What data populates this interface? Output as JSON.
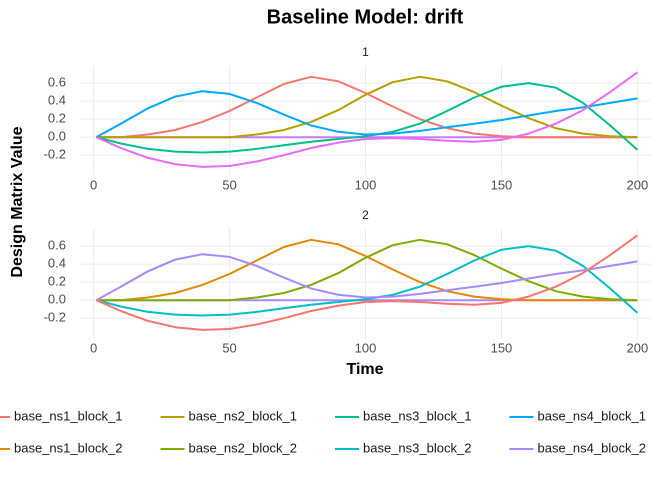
{
  "chart_data": {
    "type": "line",
    "title": "Baseline Model: drift",
    "xlabel": "Time",
    "ylabel": "Design Matrix Value",
    "x": [
      1,
      10,
      20,
      30,
      40,
      50,
      60,
      70,
      80,
      90,
      100,
      110,
      120,
      130,
      140,
      150,
      160,
      170,
      180,
      190,
      200
    ],
    "xlim": [
      -5,
      205
    ],
    "xticks": [
      0,
      50,
      100,
      150,
      200
    ],
    "ylim": [
      -0.42,
      0.79
    ],
    "yticks": [
      -0.2,
      {
        "value": 0,
        "label": "0.0"
      },
      0.2,
      0.4,
      0.6
    ],
    "grid": true,
    "facets": [
      {
        "title": "1",
        "series": [
          {
            "color": "#C77CFF",
            "values": [
              0,
              0,
              0,
              0,
              0,
              0,
              0,
              0,
              0,
              0,
              0,
              0,
              0,
              0,
              0,
              0,
              0,
              0,
              0,
              0,
              0
            ]
          },
          {
            "color": "#F8766D",
            "values": [
              0,
              0,
              0.03,
              0.08,
              0.17,
              0.29,
              0.44,
              0.59,
              0.67,
              0.62,
              0.49,
              0.34,
              0.2,
              0.1,
              0.04,
              0.01,
              0,
              0,
              0,
              0,
              0
            ]
          },
          {
            "color": "#B79F00",
            "values": [
              0,
              0,
              0,
              0,
              0,
              0,
              0.03,
              0.08,
              0.17,
              0.3,
              0.47,
              0.61,
              0.67,
              0.62,
              0.5,
              0.35,
              0.21,
              0.1,
              0.04,
              0.01,
              0
            ]
          },
          {
            "color": "#00C08B",
            "values": [
              0,
              -0.07,
              -0.13,
              -0.16,
              -0.17,
              -0.16,
              -0.13,
              -0.09,
              -0.05,
              -0.02,
              0.01,
              0.06,
              0.15,
              0.29,
              0.44,
              0.56,
              0.6,
              0.55,
              0.38,
              0.13,
              -0.14
            ]
          },
          {
            "color": "#00A9FF",
            "values": [
              0,
              0.15,
              0.32,
              0.45,
              0.51,
              0.48,
              0.38,
              0.25,
              0.13,
              0.06,
              0.03,
              0.04,
              0.07,
              0.11,
              0.15,
              0.19,
              0.24,
              0.29,
              0.33,
              0.38,
              0.43
            ]
          },
          {
            "color": "#E76BF3",
            "values": [
              0,
              -0.12,
              -0.23,
              -0.3,
              -0.33,
              -0.32,
              -0.27,
              -0.2,
              -0.12,
              -0.06,
              -0.02,
              -0.01,
              -0.02,
              -0.04,
              -0.05,
              -0.03,
              0.04,
              0.15,
              0.3,
              0.5,
              0.72
            ]
          }
        ]
      },
      {
        "title": "2",
        "series": [
          {
            "color": "#A58AFF",
            "values": [
              0,
              0,
              0,
              0,
              0,
              0,
              0,
              0,
              0,
              0,
              0,
              0,
              0,
              0,
              0,
              0,
              0,
              0,
              0,
              0,
              0
            ]
          },
          {
            "color": "#E58700",
            "values": [
              0,
              0,
              0.03,
              0.08,
              0.17,
              0.29,
              0.44,
              0.59,
              0.67,
              0.62,
              0.49,
              0.34,
              0.2,
              0.1,
              0.04,
              0.01,
              0,
              0,
              0,
              0,
              0
            ]
          },
          {
            "color": "#7CAE00",
            "values": [
              0,
              0,
              0,
              0,
              0,
              0,
              0.03,
              0.08,
              0.17,
              0.3,
              0.47,
              0.61,
              0.67,
              0.62,
              0.5,
              0.35,
              0.21,
              0.1,
              0.04,
              0.01,
              0
            ]
          },
          {
            "color": "#00BFC4",
            "values": [
              0,
              -0.07,
              -0.13,
              -0.16,
              -0.17,
              -0.16,
              -0.13,
              -0.09,
              -0.05,
              -0.02,
              0.01,
              0.06,
              0.15,
              0.29,
              0.44,
              0.56,
              0.6,
              0.55,
              0.38,
              0.13,
              -0.14
            ]
          },
          {
            "color": "#A58AFF",
            "values": [
              0,
              0.15,
              0.32,
              0.45,
              0.51,
              0.48,
              0.38,
              0.25,
              0.13,
              0.06,
              0.03,
              0.04,
              0.07,
              0.11,
              0.15,
              0.19,
              0.24,
              0.29,
              0.33,
              0.38,
              0.43
            ]
          },
          {
            "color": "#F8766D",
            "values": [
              0,
              -0.12,
              -0.23,
              -0.3,
              -0.33,
              -0.32,
              -0.27,
              -0.2,
              -0.12,
              -0.06,
              -0.02,
              -0.01,
              -0.02,
              -0.04,
              -0.05,
              -0.03,
              0.04,
              0.15,
              0.3,
              0.5,
              0.72
            ]
          }
        ]
      }
    ],
    "legend": [
      {
        "name": "base_ns1_block_1",
        "color": "#F8766D"
      },
      {
        "name": "base_ns2_block_1",
        "color": "#B79F00"
      },
      {
        "name": "base_ns3_block_1",
        "color": "#00C08B"
      },
      {
        "name": "base_ns4_block_1",
        "color": "#00A9FF"
      },
      {
        "name": "base_ns1_block_2",
        "color": "#E58700"
      },
      {
        "name": "base_ns2_block_2",
        "color": "#7CAE00"
      },
      {
        "name": "base_ns3_block_2",
        "color": "#00BFC4"
      },
      {
        "name": "base_ns4_block_2",
        "color": "#A58AFF"
      }
    ]
  }
}
